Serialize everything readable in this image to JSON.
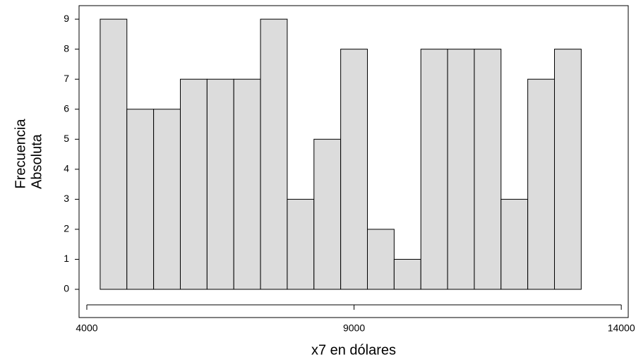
{
  "chart_data": {
    "type": "histogram",
    "xlabel": "x7 en dólares",
    "ylabel": [
      "Frecuencia",
      "Absoluta"
    ],
    "bins": [
      4250,
      4750,
      5250,
      5750,
      6250,
      6750,
      7250,
      7750,
      8250,
      8750,
      9250,
      9750,
      10250,
      10750,
      11250,
      11750,
      12250,
      12750,
      13250
    ],
    "values": [
      9,
      6,
      6,
      7,
      7,
      7,
      9,
      3,
      5,
      8,
      2,
      1,
      8,
      8,
      8,
      3,
      7,
      8
    ],
    "color": "#dcdcdc",
    "xlim": [
      3855,
      14130
    ],
    "xticks": [
      4000,
      9000,
      14000
    ],
    "ylim": [
      -0.94,
      9.45
    ],
    "yticks": [
      0,
      1,
      2,
      3,
      4,
      5,
      6,
      7,
      8,
      9
    ]
  }
}
